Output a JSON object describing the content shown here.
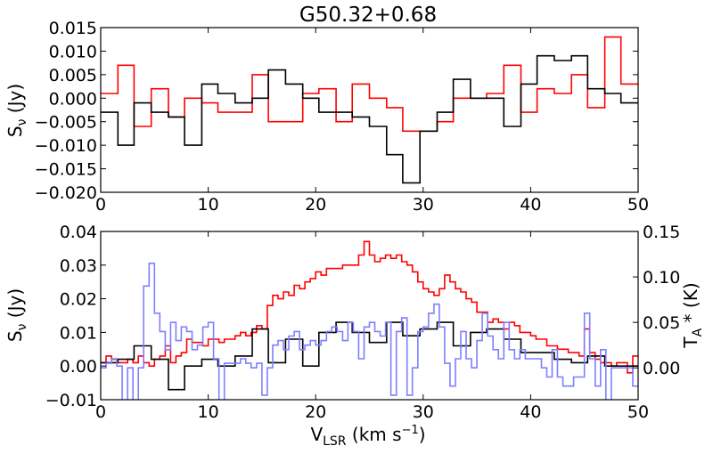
{
  "chart_data": [
    {
      "type": "line",
      "step": true,
      "title": "G50.32+0.68",
      "xlabel": "",
      "ylabel": "S_ν (Jy)",
      "ylabel_main": "S",
      "ylabel_sub": "ν",
      "ylabel_tail": " (Jy)",
      "xlim": [
        0,
        50
      ],
      "ylim": [
        -0.02,
        0.015
      ],
      "xticks": [
        0,
        10,
        20,
        30,
        40,
        50
      ],
      "xtick_labels": [
        "0",
        "10",
        "20",
        "30",
        "40",
        "50"
      ],
      "yticks": [
        -0.02,
        -0.015,
        -0.01,
        -0.005,
        0.0,
        0.005,
        0.01,
        0.015
      ],
      "ytick_labels": [
        "−0.020",
        "−0.015",
        "−0.010",
        "−0.005",
        "0.000",
        "0.005",
        "0.010",
        "0.015"
      ],
      "series": [
        {
          "name": "red",
          "color": "#ff0000",
          "x": [
            0,
            1.6,
            3.1,
            4.7,
            6.3,
            7.8,
            9.4,
            10.9,
            12.5,
            14.1,
            15.6,
            17.2,
            18.8,
            20.3,
            21.9,
            23.4,
            25.0,
            26.6,
            28.1,
            29.7,
            31.3,
            32.8,
            34.4,
            35.9,
            37.5,
            39.1,
            40.6,
            42.2,
            43.8,
            45.3,
            46.9,
            48.4,
            50.0
          ],
          "y": [
            0.001,
            0.007,
            -0.006,
            0.002,
            -0.004,
            0.0,
            -0.001,
            -0.003,
            -0.003,
            0.005,
            -0.005,
            -0.005,
            0.001,
            0.002,
            -0.005,
            0.003,
            0.0,
            -0.002,
            -0.007,
            -0.007,
            -0.005,
            0.0,
            0.0,
            0.001,
            0.007,
            -0.003,
            0.002,
            0.001,
            0.005,
            -0.002,
            0.013,
            0.003,
            0.003
          ]
        },
        {
          "name": "black",
          "color": "#000000",
          "x": [
            0,
            1.6,
            3.1,
            4.7,
            6.3,
            7.8,
            9.4,
            10.9,
            12.5,
            14.1,
            15.6,
            17.2,
            18.8,
            20.3,
            21.9,
            23.4,
            25.0,
            26.6,
            28.1,
            29.7,
            31.3,
            32.8,
            34.4,
            35.9,
            37.5,
            39.1,
            40.6,
            42.2,
            43.8,
            45.3,
            46.9,
            48.4,
            50.0
          ],
          "y": [
            -0.003,
            -0.01,
            -0.001,
            -0.003,
            -0.004,
            -0.01,
            0.003,
            0.001,
            -0.001,
            0.0,
            0.006,
            0.003,
            0.0,
            -0.003,
            -0.003,
            -0.004,
            -0.006,
            -0.012,
            -0.018,
            -0.007,
            -0.003,
            0.004,
            0.0,
            0.0,
            -0.006,
            0.003,
            0.009,
            0.008,
            0.009,
            0.002,
            0.001,
            -0.001,
            -0.003
          ]
        }
      ]
    },
    {
      "type": "line",
      "step": true,
      "title": "",
      "xlabel": "V_LSR (km s⁻¹)",
      "xlabel_main": "V",
      "xlabel_sub": "LSR",
      "xlabel_tail": " (km s",
      "xlabel_sup": "−1",
      "xlabel_close": ")",
      "ylabel": "S_ν (Jy)",
      "ylabel_main": "S",
      "ylabel_sub": "ν",
      "ylabel_tail": " (Jy)",
      "y2label": "T_A* (K)",
      "y2label_main": "T",
      "y2label_sub": "A",
      "y2label_tail": " * (K)",
      "xlim": [
        0,
        50
      ],
      "ylim": [
        -0.01,
        0.04
      ],
      "y2lim": [
        -0.035,
        0.15
      ],
      "xticks": [
        0,
        10,
        20,
        30,
        40,
        50
      ],
      "xtick_labels": [
        "0",
        "10",
        "20",
        "30",
        "40",
        "50"
      ],
      "yticks": [
        -0.01,
        0.0,
        0.01,
        0.02,
        0.03,
        0.04
      ],
      "ytick_labels": [
        "−0.01",
        "0.00",
        "0.01",
        "0.02",
        "0.03",
        "0.04"
      ],
      "y2ticks": [
        0.0,
        0.05,
        0.1,
        0.15
      ],
      "y2tick_labels": [
        "0.00",
        "0.05",
        "0.10",
        "0.15"
      ],
      "series": [
        {
          "name": "red",
          "axis": "left",
          "color": "#ff0000",
          "x": [
            0,
            0.5,
            1.0,
            1.5,
            2.0,
            2.5,
            3.0,
            3.5,
            4.0,
            4.5,
            5.0,
            5.5,
            6.0,
            6.5,
            7.0,
            7.5,
            8.0,
            8.5,
            9.0,
            9.5,
            10.0,
            10.5,
            11.0,
            11.5,
            12.0,
            12.5,
            13.0,
            13.5,
            14.0,
            14.5,
            15.0,
            15.5,
            16.0,
            16.5,
            17.0,
            17.5,
            18.0,
            18.5,
            19.0,
            19.5,
            20.0,
            20.5,
            21.0,
            21.5,
            22.0,
            22.5,
            23.0,
            23.5,
            24.0,
            24.5,
            25.0,
            25.5,
            26.0,
            26.5,
            27.0,
            27.5,
            28.0,
            28.5,
            29.0,
            29.5,
            30.0,
            30.5,
            31.0,
            31.5,
            32.0,
            32.5,
            33.0,
            33.5,
            34.0,
            34.5,
            35.0,
            35.5,
            36.0,
            36.5,
            37.0,
            37.5,
            38.0,
            38.5,
            39.0,
            39.5,
            40.0,
            40.5,
            41.0,
            41.5,
            42.0,
            42.5,
            43.0,
            43.5,
            44.0,
            44.5,
            45.0,
            45.5,
            46.0,
            46.5,
            47.0,
            47.5,
            48.0,
            48.5,
            49.0,
            49.5,
            50.0
          ],
          "y": [
            0.001,
            0.003,
            0.002,
            0.001,
            0.001,
            0.002,
            0.001,
            0.003,
            0.001,
            0.0,
            0.002,
            0.003,
            0.006,
            0.001,
            0.003,
            0.004,
            0.008,
            0.007,
            0.007,
            0.006,
            0.008,
            0.008,
            0.007,
            0.008,
            0.008,
            0.009,
            0.01,
            0.009,
            0.01,
            0.012,
            0.011,
            0.018,
            0.021,
            0.02,
            0.022,
            0.021,
            0.024,
            0.023,
            0.025,
            0.026,
            0.028,
            0.027,
            0.029,
            0.029,
            0.029,
            0.03,
            0.03,
            0.03,
            0.033,
            0.037,
            0.033,
            0.031,
            0.032,
            0.033,
            0.032,
            0.033,
            0.031,
            0.03,
            0.028,
            0.025,
            0.023,
            0.022,
            0.021,
            0.023,
            0.027,
            0.025,
            0.023,
            0.022,
            0.02,
            0.019,
            0.016,
            0.016,
            0.013,
            0.014,
            0.013,
            0.011,
            0.013,
            0.012,
            0.01,
            0.01,
            0.009,
            0.008,
            0.008,
            0.006,
            0.006,
            0.005,
            0.005,
            0.004,
            0.004,
            0.003,
            0.011,
            0.004,
            0.002,
            0.001,
            0.001,
            0.0,
            0.001,
            0.001,
            -0.002,
            0.003,
            0.003
          ]
        },
        {
          "name": "black",
          "axis": "left",
          "color": "#000000",
          "x": [
            0,
            1.6,
            3.1,
            4.7,
            6.3,
            7.8,
            9.4,
            10.9,
            12.5,
            14.1,
            15.6,
            17.2,
            18.8,
            20.3,
            21.9,
            23.4,
            25.0,
            26.6,
            28.1,
            29.7,
            31.3,
            32.8,
            34.4,
            35.9,
            37.5,
            39.1,
            40.6,
            42.2,
            43.8,
            45.3,
            46.9,
            48.4,
            50.0
          ],
          "y": [
            0.001,
            0.002,
            0.006,
            0.002,
            -0.007,
            0.0,
            0.002,
            0.0,
            0.003,
            0.011,
            0.001,
            0.008,
            0.0,
            0.01,
            0.013,
            0.01,
            0.007,
            0.013,
            0.009,
            0.011,
            0.013,
            0.006,
            0.01,
            0.011,
            0.008,
            0.004,
            0.004,
            0.002,
            0.001,
            0.003,
            0.0,
            0.0,
            -0.001
          ]
        },
        {
          "name": "blue",
          "axis": "right",
          "color": "#7f7fff",
          "x": [
            0,
            0.5,
            1.0,
            1.5,
            2.0,
            2.5,
            3.0,
            3.5,
            4.0,
            4.5,
            5.0,
            5.5,
            6.0,
            6.5,
            7.0,
            7.5,
            8.0,
            8.5,
            9.0,
            9.5,
            10.0,
            10.5,
            11.0,
            11.5,
            12.0,
            12.5,
            13.0,
            13.5,
            14.0,
            14.5,
            15.0,
            15.5,
            16.0,
            16.5,
            17.0,
            17.5,
            18.0,
            18.5,
            19.0,
            19.5,
            20.0,
            20.5,
            21.0,
            21.5,
            22.0,
            22.5,
            23.0,
            23.5,
            24.0,
            24.5,
            25.0,
            25.5,
            26.0,
            26.5,
            27.0,
            27.5,
            28.0,
            28.5,
            29.0,
            29.5,
            30.0,
            30.5,
            31.0,
            31.5,
            32.0,
            32.5,
            33.0,
            33.5,
            34.0,
            34.5,
            35.0,
            35.5,
            36.0,
            36.5,
            37.0,
            37.5,
            38.0,
            38.5,
            39.0,
            39.5,
            40.0,
            40.5,
            41.0,
            41.5,
            42.0,
            42.5,
            43.0,
            43.5,
            44.0,
            44.5,
            45.0,
            45.5,
            46.0,
            46.5,
            47.0,
            47.5,
            48.0,
            48.5,
            49.0,
            49.5,
            50.0
          ],
          "y": [
            0.0,
            0.005,
            0.01,
            0.002,
            -0.04,
            0.0,
            -0.04,
            0.0,
            0.09,
            0.115,
            0.06,
            0.04,
            0.02,
            0.05,
            0.03,
            0.045,
            0.04,
            0.02,
            0.025,
            0.045,
            0.05,
            0.01,
            -0.04,
            0.005,
            0.005,
            0.005,
            0.01,
            0.005,
            0.0,
            0.005,
            -0.03,
            0.0,
            0.025,
            0.03,
            0.02,
            0.035,
            0.04,
            0.02,
            0.025,
            0.03,
            0.025,
            0.03,
            0.04,
            0.045,
            0.04,
            0.03,
            0.05,
            0.04,
            0.01,
            0.045,
            0.05,
            0.04,
            0.035,
            0.05,
            -0.03,
            0.04,
            0.055,
            -0.03,
            0.0,
            0.04,
            0.045,
            0.06,
            0.07,
            0.045,
            0.005,
            -0.02,
            0.01,
            0.04,
            0.01,
            0.0,
            0.03,
            0.06,
            0.035,
            0.02,
            0.01,
            0.05,
            0.02,
            0.01,
            0.02,
            0.01,
            0.01,
            0.01,
            0.0,
            -0.01,
            0.02,
            -0.01,
            -0.02,
            -0.02,
            -0.01,
            -0.01,
            0.06,
            0.01,
            -0.02,
            0.02,
            -0.05,
            0.0,
            0.0,
            0.0,
            0.0,
            -0.02,
            -0.02
          ]
        }
      ]
    }
  ]
}
